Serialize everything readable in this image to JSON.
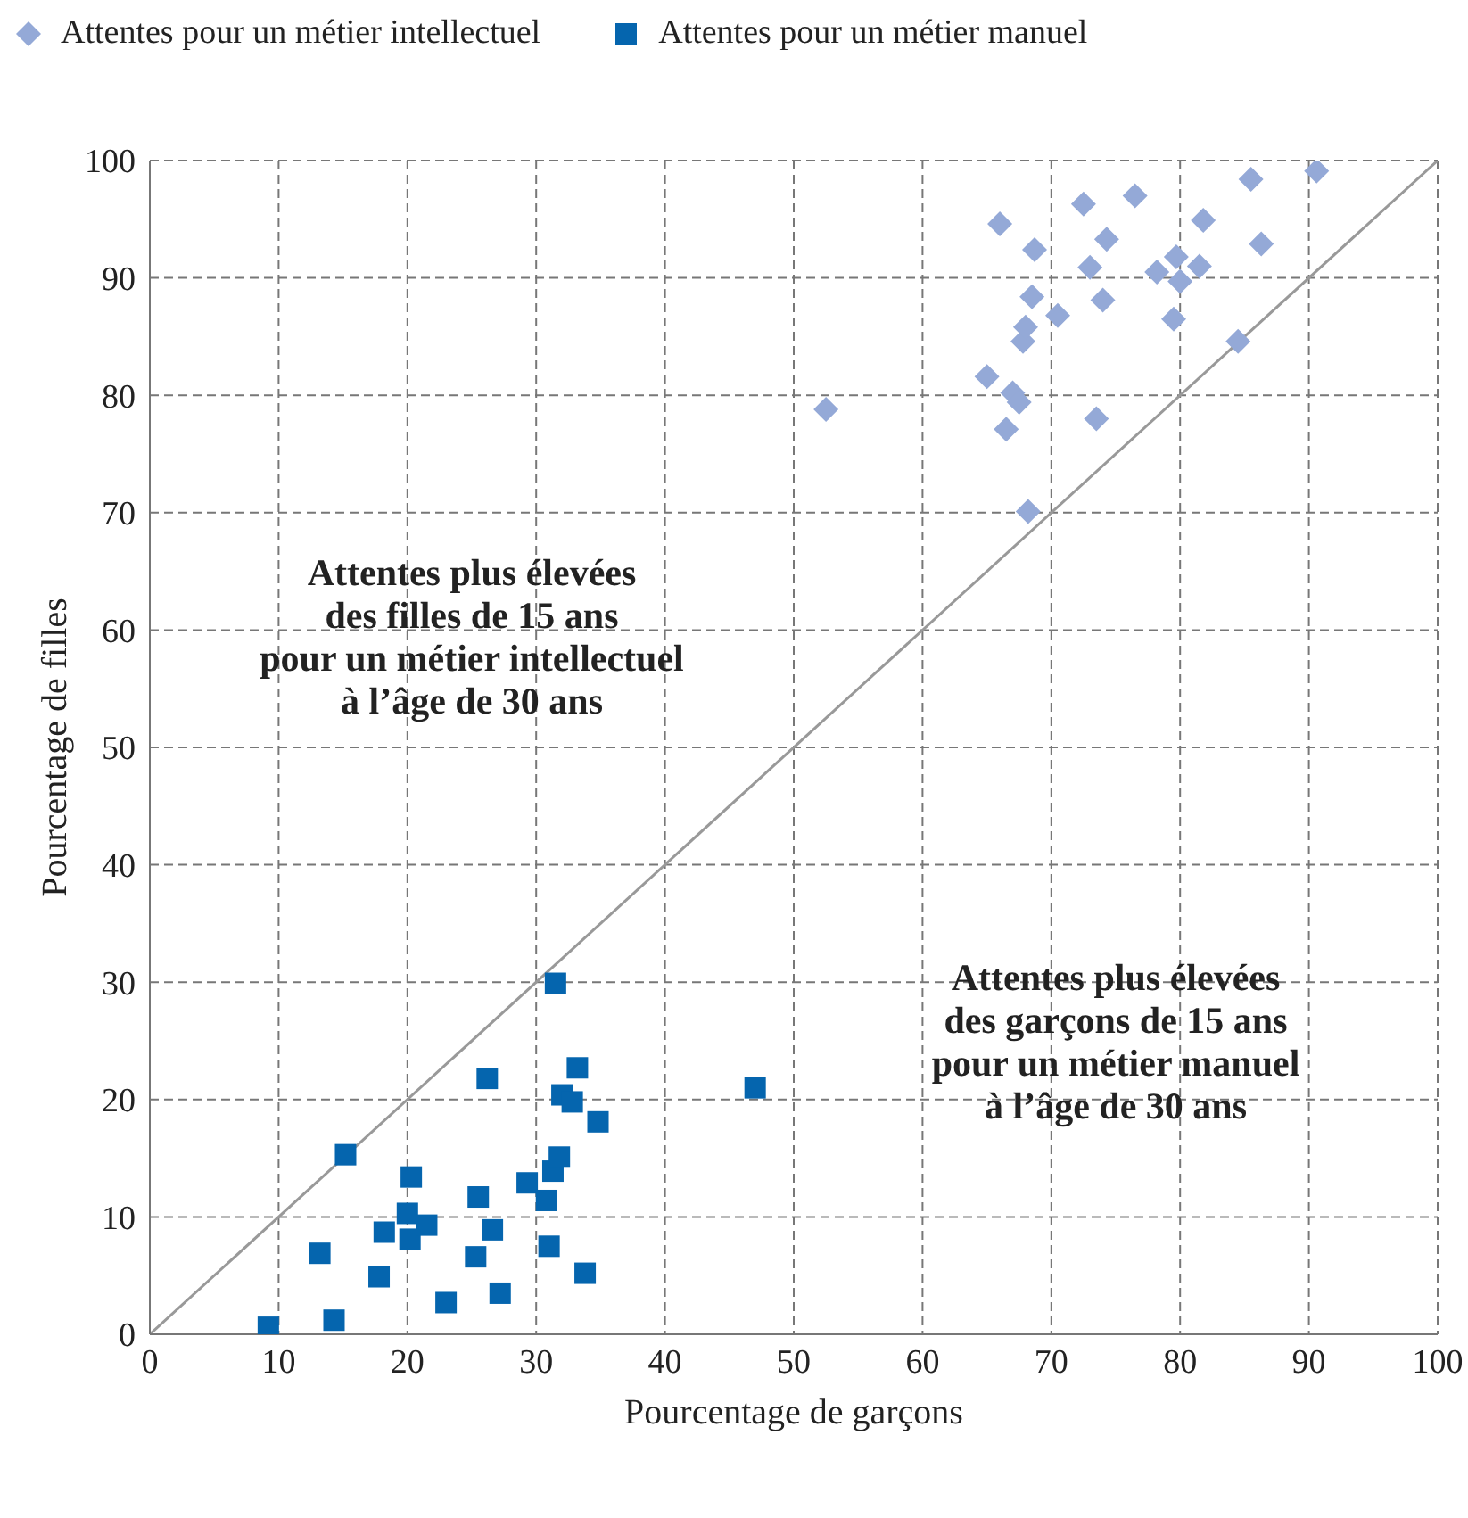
{
  "chart_data": {
    "type": "scatter",
    "xlabel": "Pourcentage de garçons",
    "ylabel": "Pourcentage de filles",
    "xlim": [
      0,
      100
    ],
    "ylim": [
      0,
      100
    ],
    "xticks": [
      0,
      10,
      20,
      30,
      40,
      50,
      60,
      70,
      80,
      90,
      100
    ],
    "yticks": [
      0,
      10,
      20,
      30,
      40,
      50,
      60,
      70,
      80,
      90,
      100
    ],
    "grid": true,
    "legend": "top left",
    "series": [
      {
        "name": "Attentes pour un métier intellectuel",
        "color": "#94a9d7",
        "marker": "diamond",
        "x": [
          52.5,
          65,
          66,
          66.5,
          67,
          67.5,
          67.8,
          68,
          68.2,
          68.5,
          68.7,
          70.5,
          72.5,
          73,
          73.5,
          74,
          74.3,
          76.5,
          78.2,
          79.5,
          79.7,
          80,
          81.5,
          81.8,
          84.5,
          85.5,
          86.3,
          90.6
        ],
        "values": [
          78.8,
          81.6,
          94.6,
          77.1,
          80.2,
          79.4,
          84.6,
          85.8,
          70.1,
          88.4,
          92.4,
          86.8,
          96.3,
          90.9,
          78,
          88.1,
          93.3,
          97,
          90.5,
          86.5,
          91.8,
          89.7,
          91,
          94.9,
          84.6,
          98.4,
          92.9,
          99.1
        ]
      },
      {
        "name": "Attentes pour un métier manuel",
        "color": "#0565ae",
        "marker": "square",
        "x": [
          9.2,
          14.3,
          13.2,
          15.2,
          17.8,
          18.2,
          20,
          20.2,
          20.3,
          21.5,
          23,
          25.3,
          25.5,
          26.2,
          26.6,
          27.2,
          29.3,
          30.8,
          31,
          31.3,
          31.5,
          31.8,
          32,
          32.8,
          33.2,
          33.8,
          34.8,
          47
        ],
        "values": [
          0.6,
          1.2,
          6.9,
          15.3,
          4.9,
          8.7,
          10.3,
          8.1,
          13.4,
          9.3,
          2.7,
          6.6,
          11.7,
          21.8,
          8.9,
          3.5,
          12.9,
          11.4,
          7.5,
          13.9,
          29.9,
          15.1,
          20.4,
          19.8,
          22.7,
          5.2,
          18.1,
          21
        ]
      },
      {
        "type": "line",
        "color": "#999999",
        "marker": "none",
        "x": [
          0,
          100
        ],
        "values": [
          0,
          100
        ]
      }
    ],
    "annotations": [
      "Attentes plus élevées\ndes filles de 15 ans\npour un métier intellectuel\nà l’âge de 30 ans",
      "Attentes plus élevées\ndes garçons de 15 ans\npour un métier manuel\nà l’âge de 30 ans"
    ]
  }
}
